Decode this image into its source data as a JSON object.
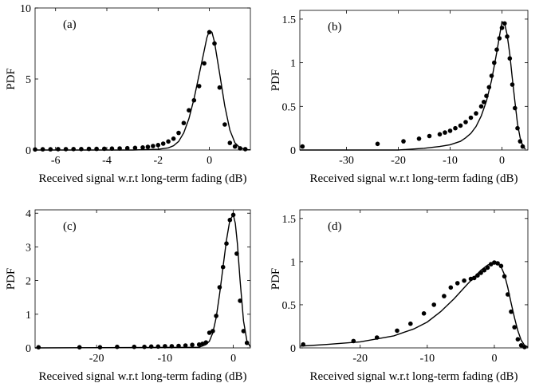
{
  "chart_data": [
    {
      "type": "scatter",
      "panel_label": "(a)",
      "xlabel": "Received signal w.r.t long-term fading (dB)",
      "ylabel": "PDF",
      "xlim": [
        -6.8,
        1.6
      ],
      "ylim": [
        0,
        10
      ],
      "xticks": [
        -6,
        -4,
        -2,
        0
      ],
      "xtick_labels": [
        "-6",
        "-4",
        "-2",
        "0"
      ],
      "yticks": [
        0,
        5,
        10
      ],
      "ytick_labels": [
        "0",
        "5",
        "10"
      ],
      "series": [
        {
          "style": "markers",
          "x": [
            -6.8,
            -6.5,
            -6.2,
            -5.9,
            -5.6,
            -5.3,
            -5.0,
            -4.7,
            -4.4,
            -4.1,
            -3.8,
            -3.5,
            -3.2,
            -2.9,
            -2.6,
            -2.4,
            -2.2,
            -2.0,
            -1.8,
            -1.6,
            -1.4,
            -1.2,
            -1.0,
            -0.8,
            -0.6,
            -0.4,
            -0.2,
            0.0,
            0.2,
            0.4,
            0.6,
            0.8,
            1.0,
            1.2,
            1.4
          ],
          "y": [
            0.04,
            0.05,
            0.05,
            0.06,
            0.06,
            0.07,
            0.07,
            0.08,
            0.08,
            0.09,
            0.1,
            0.11,
            0.13,
            0.15,
            0.18,
            0.22,
            0.28,
            0.35,
            0.45,
            0.6,
            0.8,
            1.2,
            1.9,
            2.8,
            3.5,
            4.5,
            6.1,
            8.3,
            7.5,
            4.4,
            1.8,
            0.5,
            0.25,
            0.12,
            0.06
          ]
        },
        {
          "style": "line",
          "x": [
            -6.8,
            -3.0,
            -2.0,
            -1.6,
            -1.4,
            -1.2,
            -1.0,
            -0.8,
            -0.6,
            -0.4,
            -0.2,
            -0.1,
            0.0,
            0.1,
            0.2,
            0.4,
            0.6,
            0.8,
            1.0,
            1.2,
            1.4,
            1.6
          ],
          "y": [
            0,
            0,
            0.05,
            0.15,
            0.3,
            0.6,
            1.2,
            2.2,
            3.6,
            5.3,
            7.0,
            7.9,
            8.4,
            8.3,
            7.6,
            5.4,
            3.1,
            1.4,
            0.5,
            0.15,
            0.04,
            0.01
          ]
        }
      ]
    },
    {
      "type": "scatter",
      "panel_label": "(b)",
      "xlabel": "Received signal w.r.t long-term fading (dB)",
      "ylabel": "PDF",
      "xlim": [
        -39,
        5
      ],
      "ylim": [
        0,
        1.6
      ],
      "xticks": [
        -30,
        -20,
        -10,
        0
      ],
      "xtick_labels": [
        "-30",
        "-20",
        "-10",
        "0"
      ],
      "yticks": [
        0,
        0.5,
        1,
        1.5
      ],
      "ytick_labels": [
        "0",
        "0.5",
        "1",
        "1.5"
      ],
      "series": [
        {
          "style": "markers",
          "x": [
            -38.5,
            -24,
            -19,
            -16,
            -14,
            -12,
            -11,
            -10,
            -9,
            -8,
            -7,
            -6,
            -5,
            -4,
            -3.5,
            -3,
            -2.5,
            -2,
            -1.5,
            -1,
            -0.5,
            0,
            0.5,
            1,
            1.5,
            2,
            2.5,
            3,
            3.5,
            4
          ],
          "y": [
            0.04,
            0.07,
            0.1,
            0.13,
            0.16,
            0.18,
            0.2,
            0.22,
            0.25,
            0.28,
            0.32,
            0.37,
            0.42,
            0.5,
            0.55,
            0.62,
            0.72,
            0.85,
            1.0,
            1.15,
            1.28,
            1.4,
            1.45,
            1.3,
            1.05,
            0.75,
            0.48,
            0.25,
            0.1,
            0.04
          ]
        },
        {
          "style": "line",
          "x": [
            -39,
            -20,
            -15,
            -12,
            -10,
            -8,
            -7,
            -6,
            -5,
            -4,
            -3,
            -2,
            -1,
            -0.5,
            0,
            0.5,
            1,
            1.5,
            2,
            2.5,
            3,
            3.5,
            4,
            4.5
          ],
          "y": [
            0,
            0,
            0.02,
            0.04,
            0.06,
            0.1,
            0.14,
            0.19,
            0.27,
            0.39,
            0.56,
            0.8,
            1.12,
            1.3,
            1.47,
            1.45,
            1.32,
            1.1,
            0.82,
            0.55,
            0.3,
            0.14,
            0.05,
            0.01
          ]
        }
      ]
    },
    {
      "type": "scatter",
      "panel_label": "(c)",
      "xlabel": "Received signal w.r.t long-term fading (dB)",
      "ylabel": "PDF",
      "xlim": [
        -29,
        2.5
      ],
      "ylim": [
        0,
        4.1
      ],
      "xticks": [
        -20,
        -10,
        0
      ],
      "xtick_labels": [
        "-20",
        "-10",
        "0"
      ],
      "yticks": [
        0,
        1,
        2,
        3,
        4
      ],
      "ytick_labels": [
        "0",
        "1",
        "2",
        "3",
        "4"
      ],
      "series": [
        {
          "style": "markers",
          "x": [
            -28.5,
            -22.5,
            -19.5,
            -17,
            -14.5,
            -13,
            -12,
            -11,
            -10,
            -9,
            -8,
            -7,
            -6,
            -5,
            -4.5,
            -4,
            -3.5,
            -3,
            -2.5,
            -2,
            -1.5,
            -1,
            -0.5,
            0,
            0.5,
            1,
            1.5,
            2
          ],
          "y": [
            0.02,
            0.02,
            0.02,
            0.03,
            0.03,
            0.03,
            0.04,
            0.04,
            0.05,
            0.05,
            0.06,
            0.07,
            0.09,
            0.1,
            0.12,
            0.16,
            0.45,
            0.5,
            0.95,
            1.8,
            2.4,
            3.1,
            3.8,
            3.95,
            2.8,
            1.4,
            0.5,
            0.15
          ]
        },
        {
          "style": "line",
          "x": [
            -29,
            -5,
            -4,
            -3.5,
            -3,
            -2.5,
            -2,
            -1.5,
            -1,
            -0.5,
            0,
            0.3,
            0.6,
            1,
            1.5,
            2,
            2.5
          ],
          "y": [
            0,
            0.02,
            0.1,
            0.2,
            0.45,
            0.9,
            1.6,
            2.4,
            3.2,
            3.8,
            3.95,
            3.7,
            3.1,
            2.0,
            0.8,
            0.2,
            0.03
          ]
        }
      ]
    },
    {
      "type": "scatter",
      "panel_label": "(d)",
      "xlabel": "Received signal w.r.t long-term fading (dB)",
      "ylabel": "PDF",
      "xlim": [
        -29,
        5
      ],
      "ylim": [
        0,
        1.6
      ],
      "xticks": [
        -20,
        -10,
        0
      ],
      "xtick_labels": [
        "-20",
        "-10",
        "0"
      ],
      "yticks": [
        0,
        0.5,
        1,
        1.5
      ],
      "ytick_labels": [
        "0",
        "0.5",
        "1",
        "1.5"
      ],
      "series": [
        {
          "style": "markers",
          "x": [
            -28.5,
            -21,
            -17.5,
            -14.5,
            -12.5,
            -10.5,
            -9,
            -7.5,
            -6.5,
            -5.5,
            -4.5,
            -3.5,
            -3,
            -2.5,
            -2,
            -1.5,
            -1,
            -0.5,
            0,
            0.5,
            1,
            1.5,
            2,
            2.5,
            3,
            3.5,
            4,
            4.5
          ],
          "y": [
            0.04,
            0.08,
            0.12,
            0.2,
            0.28,
            0.4,
            0.5,
            0.6,
            0.7,
            0.75,
            0.78,
            0.8,
            0.81,
            0.84,
            0.87,
            0.9,
            0.93,
            0.97,
            0.99,
            0.98,
            0.95,
            0.83,
            0.62,
            0.42,
            0.24,
            0.1,
            0.03,
            0.01
          ]
        },
        {
          "style": "line",
          "x": [
            -29,
            -25,
            -20,
            -15,
            -12,
            -10,
            -8,
            -6,
            -4,
            -3,
            -2,
            -1,
            0,
            0.5,
            1,
            1.5,
            2,
            2.5,
            3,
            3.5,
            4,
            4.5,
            5
          ],
          "y": [
            0.02,
            0.04,
            0.07,
            0.14,
            0.22,
            0.3,
            0.42,
            0.57,
            0.74,
            0.82,
            0.9,
            0.96,
            0.99,
            0.98,
            0.94,
            0.85,
            0.7,
            0.52,
            0.35,
            0.2,
            0.09,
            0.03,
            0.01
          ]
        }
      ]
    }
  ]
}
